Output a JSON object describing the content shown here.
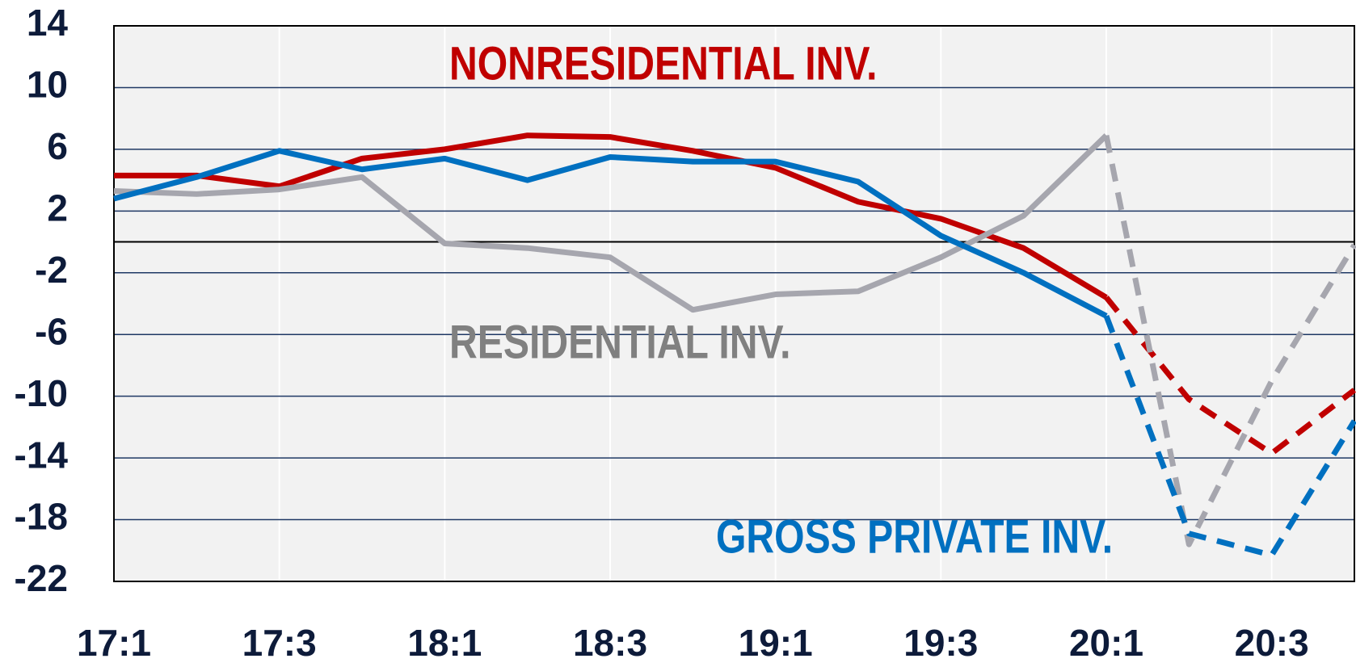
{
  "chart_data": {
    "type": "line",
    "categories": [
      "17:1",
      null,
      "17:3",
      null,
      "18:1",
      null,
      "18:3",
      null,
      "19:1",
      null,
      "19:3",
      null,
      "20:1",
      null,
      "20:3",
      null
    ],
    "dashed_from": "20:1",
    "series": [
      {
        "name": "NONRESIDENTIAL INV.",
        "color": "#c00000",
        "values": [
          4.3,
          4.3,
          3.6,
          5.4,
          6.0,
          6.9,
          6.8,
          5.9,
          4.8,
          2.6,
          1.5,
          -0.4,
          -3.6,
          -10.2,
          -13.7,
          -9.6
        ]
      },
      {
        "name": "RESIDENTIAL INV.",
        "color": "#a6a6ae",
        "label_color": "#808080",
        "values": [
          3.3,
          3.1,
          3.4,
          4.2,
          -0.1,
          -0.4,
          -1.0,
          -4.4,
          -3.4,
          -3.2,
          -1.0,
          1.7,
          6.9,
          -19.6,
          -9.0,
          -0.2
        ]
      },
      {
        "name": "GROSS PRIVATE INV.",
        "color": "#0070c0",
        "values": [
          2.8,
          4.2,
          5.9,
          4.7,
          5.4,
          4.0,
          5.5,
          5.2,
          5.2,
          3.9,
          0.4,
          -2.0,
          -4.8,
          -18.9,
          -20.3,
          -11.6
        ]
      }
    ],
    "ylim": [
      -22,
      14
    ],
    "yticks": [
      14,
      10,
      6,
      2,
      -2,
      -6,
      -10,
      -14,
      -18,
      -22
    ],
    "grid": true
  }
}
